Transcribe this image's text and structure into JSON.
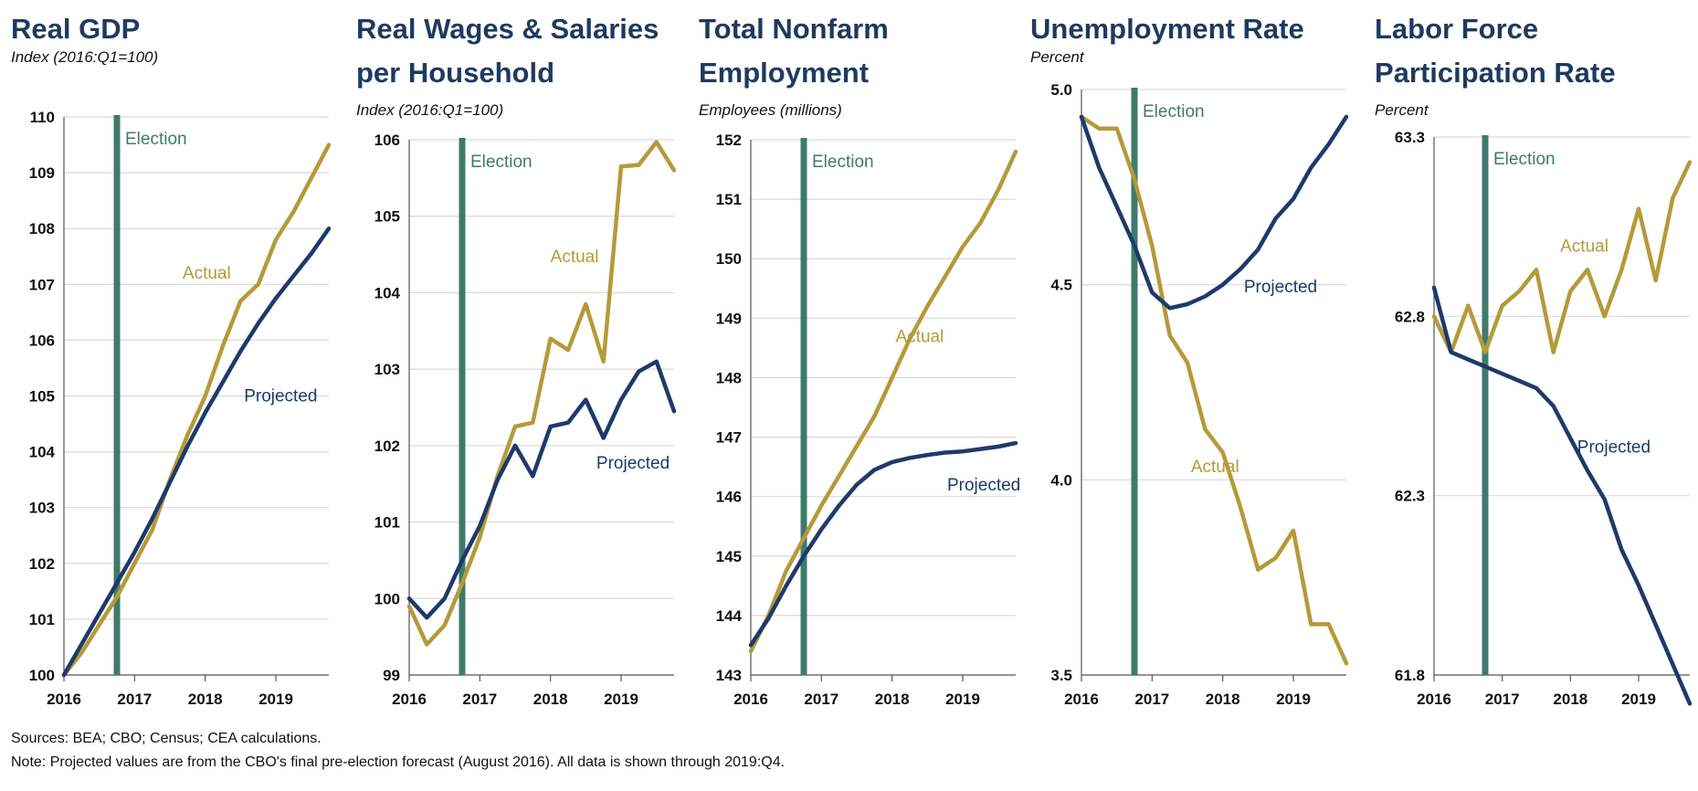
{
  "colors": {
    "actual": "#b59a3a",
    "projected": "#1e3a6b",
    "election": "#3e7b6a",
    "title": "#1e3a5f",
    "grid": "#d9d9d9"
  },
  "footer": {
    "sources": "Sources: BEA; CBO; Census; CEA calculations.",
    "note": "Note: Projected values are from the CBO's final pre-election forecast (August 2016). All data is shown through 2019:Q4."
  },
  "chart_data": [
    {
      "type": "line",
      "title": [
        "Real GDP"
      ],
      "subtitle": "Index (2016:Q1=100)",
      "ylim": [
        100,
        110
      ],
      "yticks": [
        "100",
        "101",
        "102",
        "103",
        "104",
        "105",
        "106",
        "107",
        "108",
        "109",
        "110"
      ],
      "xlim": [
        2016,
        2019.75
      ],
      "xticks": [
        "2016",
        "2017",
        "2018",
        "2019"
      ],
      "election_x": 2016.75,
      "election_label": "Election",
      "grid": true,
      "series": [
        {
          "name": "Actual",
          "x": [
            2016,
            2016.25,
            2016.5,
            2016.75,
            2017,
            2017.25,
            2017.5,
            2017.75,
            2018,
            2018.25,
            2018.5,
            2018.75,
            2019,
            2019.25,
            2019.5,
            2019.75
          ],
          "values": [
            100,
            100.4,
            100.9,
            101.4,
            102.0,
            102.6,
            103.5,
            104.3,
            105.0,
            105.9,
            106.7,
            107.0,
            107.8,
            108.3,
            108.9,
            109.5
          ]
        },
        {
          "name": "Projected",
          "x": [
            2016,
            2016.25,
            2016.5,
            2016.75,
            2017,
            2017.25,
            2017.5,
            2017.75,
            2018,
            2018.25,
            2018.5,
            2018.75,
            2019,
            2019.25,
            2019.5,
            2019.75
          ],
          "values": [
            100,
            100.55,
            101.1,
            101.65,
            102.2,
            102.8,
            103.45,
            104.1,
            104.7,
            105.25,
            105.8,
            106.3,
            106.75,
            107.15,
            107.55,
            108.0
          ]
        }
      ],
      "labels": [
        {
          "text": "Actual",
          "series": "actual",
          "x": 2017.68,
          "y": 107.1
        },
        {
          "text": "Projected",
          "series": "projected",
          "x": 2018.55,
          "y": 104.9
        }
      ]
    },
    {
      "type": "line",
      "title": [
        "Real Wages & Salaries",
        "per Household"
      ],
      "subtitle": "Index (2016:Q1=100)",
      "ylim": [
        99,
        106
      ],
      "yticks": [
        "99",
        "100",
        "101",
        "102",
        "103",
        "104",
        "105",
        "106"
      ],
      "xlim": [
        2016,
        2019.75
      ],
      "xticks": [
        "2016",
        "2017",
        "2018",
        "2019"
      ],
      "election_x": 2016.75,
      "election_label": "Election",
      "grid": true,
      "series": [
        {
          "name": "Actual",
          "x": [
            2016,
            2016.25,
            2016.5,
            2016.75,
            2017,
            2017.25,
            2017.5,
            2017.75,
            2018,
            2018.25,
            2018.5,
            2018.75,
            2019,
            2019.25,
            2019.5,
            2019.75
          ],
          "values": [
            99.9,
            99.4,
            99.65,
            100.2,
            100.8,
            101.6,
            102.25,
            102.3,
            103.4,
            103.25,
            103.85,
            103.1,
            105.65,
            105.67,
            105.97,
            105.6
          ]
        },
        {
          "name": "Projected",
          "x": [
            2016,
            2016.25,
            2016.5,
            2016.75,
            2017,
            2017.25,
            2017.5,
            2017.75,
            2018,
            2018.25,
            2018.5,
            2018.75,
            2019,
            2019.25,
            2019.5,
            2019.75
          ],
          "values": [
            100,
            99.75,
            100.0,
            100.5,
            100.95,
            101.55,
            102.0,
            101.6,
            102.25,
            102.3,
            102.6,
            102.1,
            102.6,
            102.97,
            103.1,
            102.45
          ]
        }
      ],
      "labels": [
        {
          "text": "Actual",
          "series": "actual",
          "x": 2018.0,
          "y": 104.4
        },
        {
          "text": "Projected",
          "series": "projected",
          "x": 2018.65,
          "y": 101.7
        }
      ]
    },
    {
      "type": "line",
      "title": [
        "Total Nonfarm",
        "Employment"
      ],
      "subtitle": "Employees (millions)",
      "ylim": [
        143,
        152
      ],
      "yticks": [
        "143",
        "144",
        "145",
        "146",
        "147",
        "148",
        "149",
        "150",
        "151",
        "152"
      ],
      "xlim": [
        2016,
        2019.75
      ],
      "xticks": [
        "2016",
        "2017",
        "2018",
        "2019"
      ],
      "election_x": 2016.75,
      "election_label": "Election",
      "grid": true,
      "series": [
        {
          "name": "Actual",
          "x": [
            2016,
            2016.25,
            2016.5,
            2016.75,
            2017,
            2017.25,
            2017.5,
            2017.75,
            2018,
            2018.25,
            2018.5,
            2018.75,
            2019,
            2019.25,
            2019.5,
            2019.75
          ],
          "values": [
            143.4,
            144.0,
            144.75,
            145.3,
            145.85,
            146.35,
            146.85,
            147.35,
            148.0,
            148.65,
            149.2,
            149.7,
            150.2,
            150.6,
            151.15,
            151.8
          ]
        },
        {
          "name": "Projected",
          "x": [
            2016,
            2016.25,
            2016.5,
            2016.75,
            2017,
            2017.25,
            2017.5,
            2017.75,
            2018,
            2018.25,
            2018.5,
            2018.75,
            2019,
            2019.25,
            2019.5,
            2019.75
          ],
          "values": [
            143.5,
            143.95,
            144.5,
            145.0,
            145.45,
            145.85,
            146.2,
            146.45,
            146.58,
            146.65,
            146.7,
            146.74,
            146.76,
            146.8,
            146.84,
            146.9
          ]
        }
      ],
      "labels": [
        {
          "text": "Actual",
          "series": "actual",
          "x": 2018.05,
          "y": 148.6
        },
        {
          "text": "Projected",
          "series": "projected",
          "x": 2018.78,
          "y": 146.1
        }
      ]
    },
    {
      "type": "line",
      "title": [
        "Unemployment Rate"
      ],
      "subtitle": "Percent",
      "ylim": [
        3.5,
        5.0
      ],
      "yticks": [
        "3.5",
        "4.0",
        "4.5",
        "5.0"
      ],
      "xlim": [
        2016,
        2019.75
      ],
      "xticks": [
        "2016",
        "2017",
        "2018",
        "2019"
      ],
      "election_x": 2016.75,
      "election_label": "Election",
      "grid": true,
      "series": [
        {
          "name": "Actual",
          "x": [
            2016,
            2016.25,
            2016.5,
            2016.75,
            2017,
            2017.25,
            2017.5,
            2017.75,
            2018,
            2018.25,
            2018.5,
            2018.75,
            2019,
            2019.25,
            2019.5,
            2019.75
          ],
          "values": [
            4.93,
            4.9,
            4.9,
            4.77,
            4.6,
            4.37,
            4.3,
            4.13,
            4.07,
            3.93,
            3.77,
            3.8,
            3.87,
            3.63,
            3.63,
            3.53
          ]
        },
        {
          "name": "Projected",
          "x": [
            2016,
            2016.25,
            2016.5,
            2016.75,
            2017,
            2017.25,
            2017.5,
            2017.75,
            2018,
            2018.25,
            2018.5,
            2018.75,
            2019,
            2019.25,
            2019.5,
            2019.75
          ],
          "values": [
            4.93,
            4.8,
            4.7,
            4.6,
            4.48,
            4.44,
            4.45,
            4.47,
            4.5,
            4.54,
            4.59,
            4.67,
            4.72,
            4.8,
            4.86,
            4.93
          ]
        }
      ],
      "labels": [
        {
          "text": "Actual",
          "series": "actual",
          "x": 2017.55,
          "y": 4.02
        },
        {
          "text": "Projected",
          "series": "projected",
          "x": 2018.3,
          "y": 4.48
        }
      ]
    },
    {
      "type": "line",
      "title": [
        "Labor Force",
        "Participation Rate"
      ],
      "subtitle": "Percent",
      "ylim": [
        61.8,
        63.3
      ],
      "yticks": [
        "61.8",
        "62.3",
        "62.8",
        "63.3"
      ],
      "xlim": [
        2016,
        2019.75
      ],
      "xticks": [
        "2016",
        "2017",
        "2018",
        "2019"
      ],
      "election_x": 2016.75,
      "election_label": "Election",
      "grid": true,
      "series": [
        {
          "name": "Actual",
          "x": [
            2016,
            2016.25,
            2016.5,
            2016.75,
            2017,
            2017.25,
            2017.5,
            2017.75,
            2018,
            2018.25,
            2018.5,
            2018.75,
            2019,
            2019.25,
            2019.5,
            2019.75
          ],
          "values": [
            62.8,
            62.7,
            62.83,
            62.7,
            62.83,
            62.87,
            62.93,
            62.7,
            62.87,
            62.93,
            62.8,
            62.93,
            63.1,
            62.9,
            63.13,
            63.23
          ]
        },
        {
          "name": "Projected",
          "x": [
            2016,
            2016.25,
            2016.5,
            2016.75,
            2017,
            2017.25,
            2017.5,
            2017.75,
            2018,
            2018.25,
            2018.5,
            2018.75,
            2019,
            2019.25,
            2019.5,
            2019.75
          ],
          "values": [
            62.88,
            62.7,
            62.68,
            62.66,
            62.64,
            62.62,
            62.6,
            62.55,
            62.46,
            62.37,
            62.29,
            62.15,
            62.05,
            61.94,
            61.83,
            61.72
          ]
        }
      ],
      "labels": [
        {
          "text": "Actual",
          "series": "actual",
          "x": 2017.85,
          "y": 62.98
        },
        {
          "text": "Projected",
          "series": "projected",
          "x": 2018.1,
          "y": 62.42
        }
      ]
    }
  ]
}
